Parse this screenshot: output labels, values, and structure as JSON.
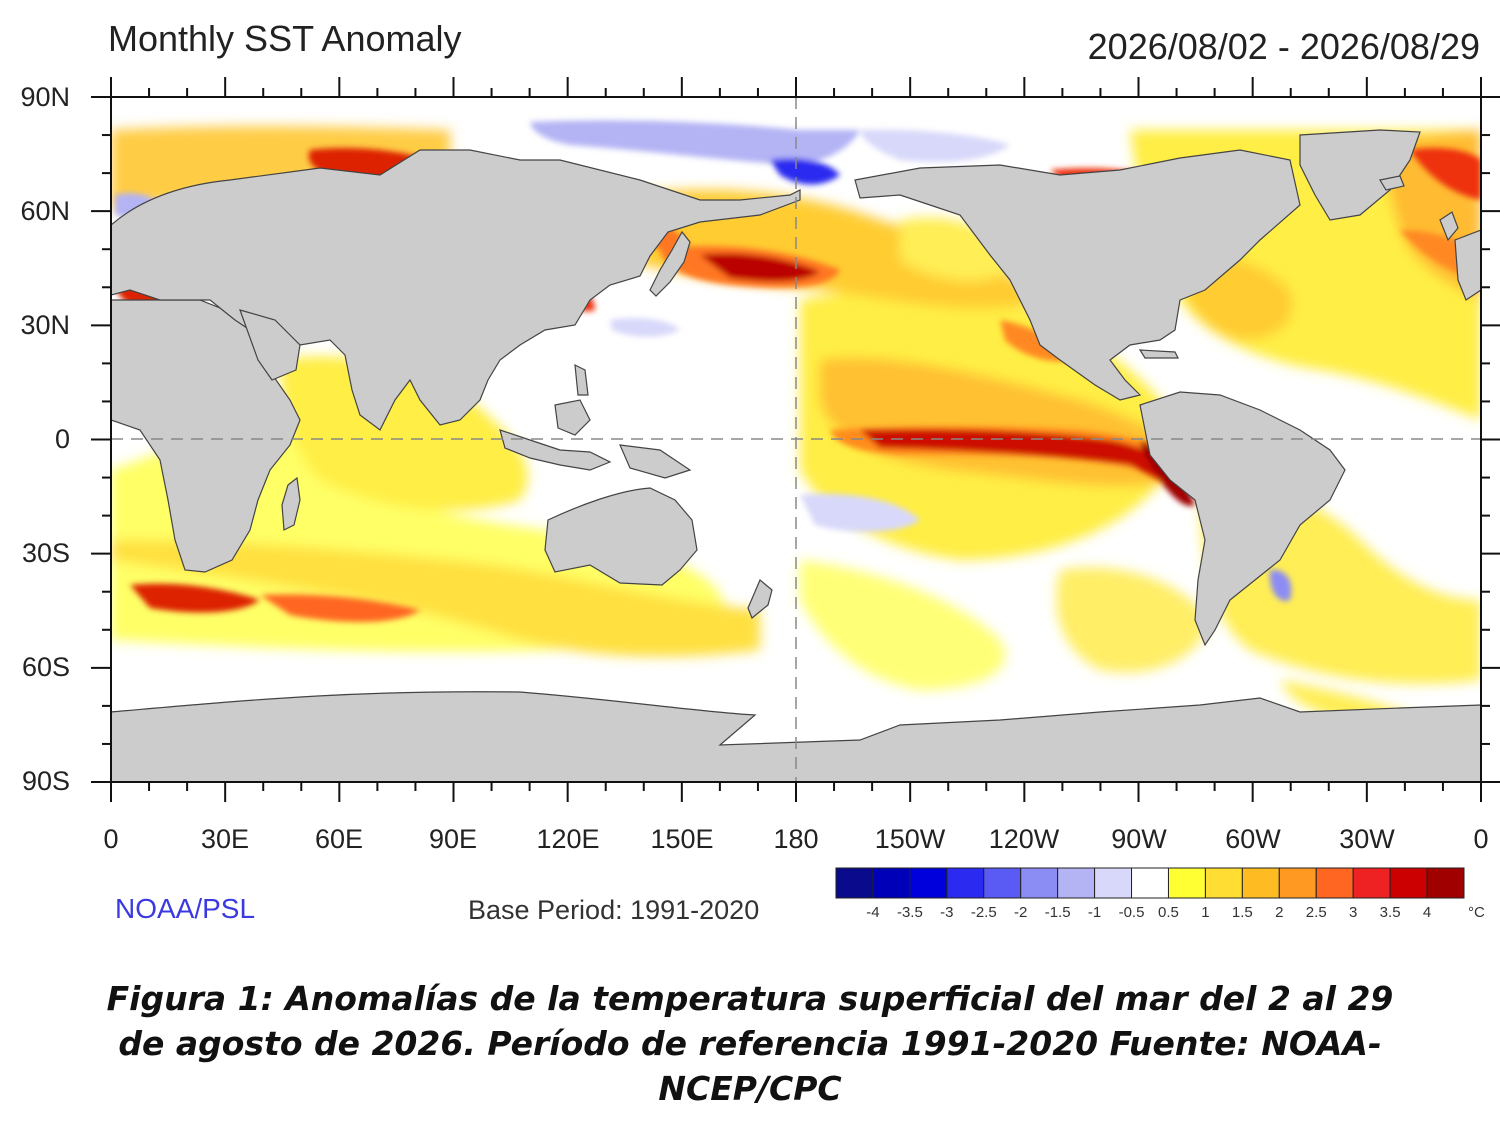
{
  "map": {
    "title": "Monthly SST Anomaly",
    "date_range": "2026/08/02 - 2026/08/29",
    "lat_labels": [
      "90N",
      "60N",
      "30N",
      "0",
      "30S",
      "60S",
      "90S"
    ],
    "lon_labels": [
      "0",
      "30E",
      "60E",
      "90E",
      "120E",
      "150E",
      "180",
      "150W",
      "120W",
      "90W",
      "60W",
      "30W",
      "0"
    ],
    "source": "NOAA/PSL",
    "base_period": "Base Period: 1991-2020"
  },
  "colorbar": {
    "labels": [
      "-4",
      "-3.5",
      "-3",
      "-2.5",
      "-2",
      "-1.5",
      "-1",
      "-0.5",
      "0.5",
      "1",
      "1.5",
      "2",
      "2.5",
      "3",
      "3.5",
      "4"
    ],
    "unit": "°C",
    "colors": [
      "#0a0a8c",
      "#0000b8",
      "#0000dc",
      "#2a2af0",
      "#5a5af5",
      "#8c8cf5",
      "#b4b4f5",
      "#d8d8fa",
      "#ffffff",
      "#ffff33",
      "#ffdd33",
      "#ffbb22",
      "#ff9922",
      "#ff6622",
      "#ee2222",
      "#cc0000",
      "#a00000"
    ]
  },
  "colors": {
    "land": "#cccccc",
    "ocean_neutral": "#ffffff"
  },
  "caption": {
    "line1": "Figura 1: Anomalías de la temperatura superficial del mar del 2 al 29",
    "line2": "de agosto de 2026. Período de referencia 1991-2020 Fuente: NOAA-",
    "line3": "NCEP/CPC"
  }
}
